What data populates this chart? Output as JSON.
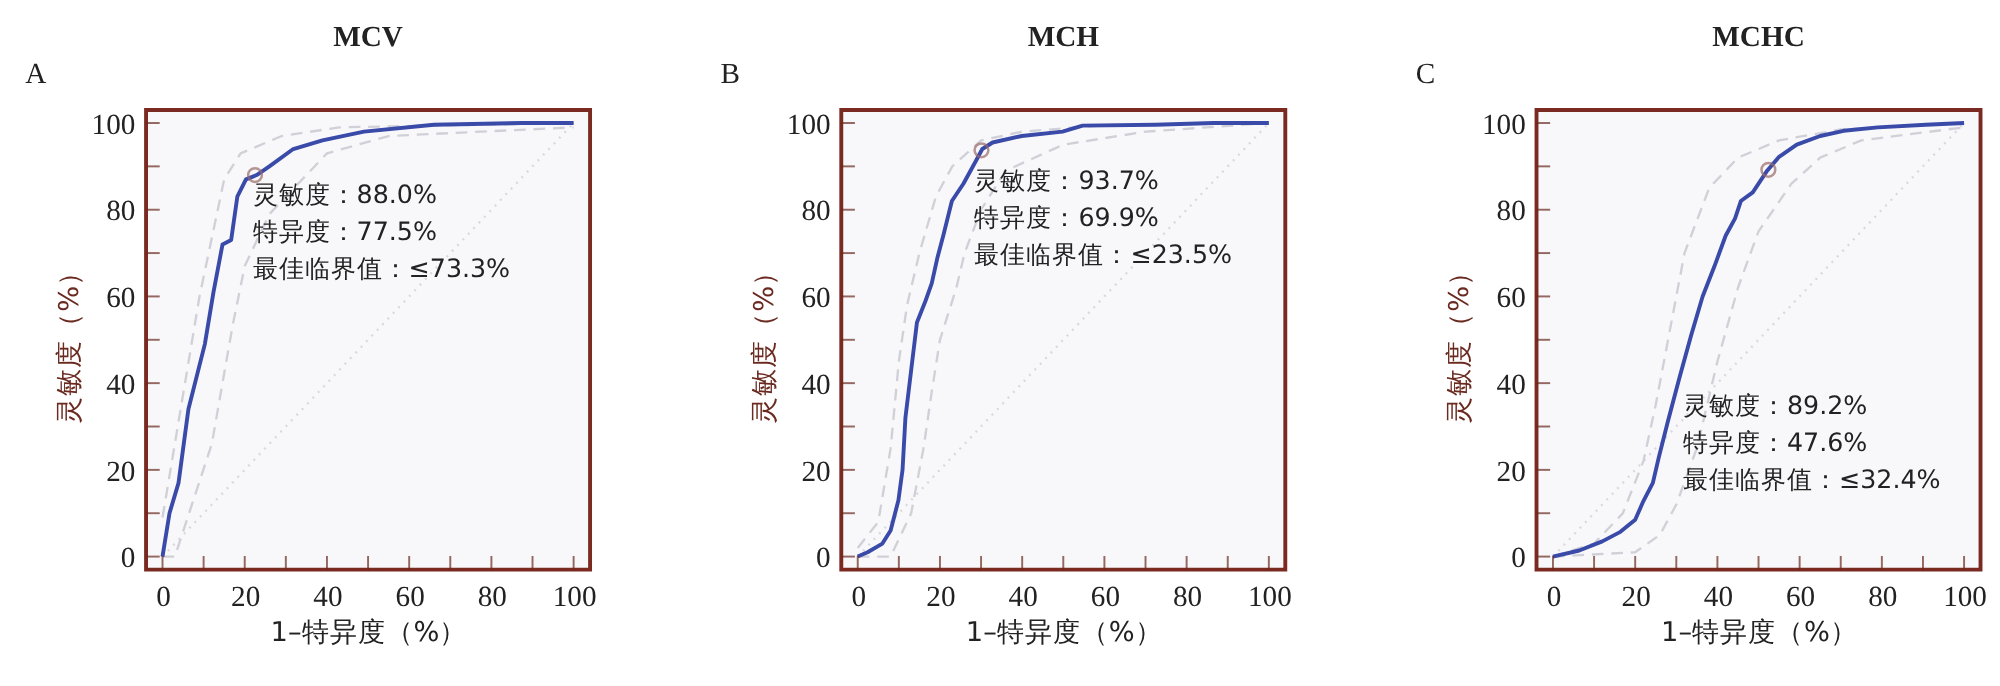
{
  "chart_data": [
    {
      "type": "line",
      "title": "MCV",
      "xlabel": "1–特异度（%）",
      "ylabel": "灵敏度（%）",
      "annotations": [
        "A",
        "灵敏度：88.0%",
        "特异度：77.5%",
        "最佳临界值：≤73.3%"
      ],
      "xlim": [
        -4,
        104
      ],
      "ylim": [
        -3,
        103
      ],
      "xticks": [
        0,
        {
          "value": 10,
          "label": null
        },
        20,
        {
          "value": 30,
          "label": null
        },
        40,
        {
          "value": 50,
          "label": null
        },
        60,
        {
          "value": 70,
          "label": null
        },
        80,
        {
          "value": 90,
          "label": null
        },
        100
      ],
      "yticks": [
        0,
        {
          "value": 10,
          "label": null
        },
        20,
        {
          "value": 30,
          "label": null
        },
        40,
        {
          "value": 50,
          "label": null
        },
        60,
        {
          "value": 70,
          "label": null
        },
        80,
        {
          "value": 90,
          "label": null
        },
        100
      ],
      "grid": false,
      "series": [
        {
          "type": "line",
          "color": "#d8d8e0",
          "line_style": "dotted",
          "marker": "none",
          "x": [
            0,
            100
          ],
          "values": [
            0,
            100
          ]
        },
        {
          "type": "line",
          "color": "#d0d0d8",
          "line_style": "dashed",
          "marker": "none",
          "x": [
            0,
            3,
            9,
            15,
            19,
            29,
            43,
            100
          ],
          "values": [
            9,
            26,
            60,
            87,
            93,
            97,
            99,
            100
          ]
        },
        {
          "type": "line",
          "color": "#d0d0d8",
          "line_style": "dashed",
          "marker": "none",
          "x": [
            0,
            3,
            12,
            17,
            20,
            26,
            40,
            55,
            100
          ],
          "values": [
            0,
            0,
            26,
            53,
            67,
            79,
            93,
            97,
            99
          ]
        },
        {
          "type": "line",
          "color": "#3a4aa8",
          "line_style": "solid",
          "marker": "none",
          "x": [
            0,
            1.7,
            3.9,
            6.3,
            10.3,
            12.4,
            14.6,
            16.7,
            18.2,
            20.3,
            22.9,
            26,
            31.8,
            38.9,
            49,
            66,
            87.5,
            100
          ],
          "values": [
            0,
            10,
            17,
            34,
            49,
            61,
            72,
            73,
            83,
            87,
            88,
            90,
            94,
            96,
            98,
            99.6,
            100,
            100
          ]
        },
        {
          "type": "scatter",
          "color": "#9a6a6a",
          "marker": "circle",
          "x": [
            22.5
          ],
          "values": [
            88.0
          ]
        }
      ]
    },
    {
      "type": "line",
      "title": "MCH",
      "xlabel": "1–特异度（%）",
      "ylabel": "灵敏度（%）",
      "annotations": [
        "B",
        "灵敏度：93.7%",
        "特异度：69.9%",
        "最佳临界值：≤23.5%"
      ],
      "xlim": [
        -4,
        104
      ],
      "ylim": [
        -3,
        103
      ],
      "xticks": [
        0,
        {
          "value": 10,
          "label": null
        },
        20,
        {
          "value": 30,
          "label": null
        },
        40,
        {
          "value": 50,
          "label": null
        },
        60,
        {
          "value": 70,
          "label": null
        },
        80,
        {
          "value": 90,
          "label": null
        },
        100
      ],
      "yticks": [
        0,
        {
          "value": 10,
          "label": null
        },
        20,
        {
          "value": 30,
          "label": null
        },
        40,
        {
          "value": 50,
          "label": null
        },
        60,
        {
          "value": 70,
          "label": null
        },
        80,
        {
          "value": 90,
          "label": null
        },
        100
      ],
      "grid": false,
      "series": [
        {
          "type": "line",
          "color": "#d8d8e0",
          "line_style": "dotted",
          "marker": "none",
          "x": [
            0,
            100
          ],
          "values": [
            0,
            100
          ]
        },
        {
          "type": "line",
          "color": "#d0d0d8",
          "line_style": "dashed",
          "marker": "none",
          "x": [
            0,
            5,
            8,
            10,
            12,
            15,
            19,
            23,
            30,
            40,
            60,
            100
          ],
          "values": [
            2,
            8,
            25,
            45,
            58,
            70,
            83,
            90,
            96,
            98,
            99.5,
            100
          ]
        },
        {
          "type": "line",
          "color": "#d0d0d8",
          "line_style": "dashed",
          "marker": "none",
          "x": [
            0,
            8,
            13,
            16,
            18,
            20,
            24,
            26,
            30,
            36,
            50,
            70,
            100
          ],
          "values": [
            0,
            0,
            10,
            25,
            38,
            50,
            62,
            70,
            80,
            89,
            95,
            98,
            100
          ]
        },
        {
          "type": "line",
          "color": "#3a4aa8",
          "line_style": "solid",
          "marker": "none",
          "x": [
            0,
            2.4,
            6,
            8,
            9.9,
            10.9,
            11.6,
            13,
            14.4,
            16.5,
            18,
            19.4,
            20.8,
            22.9,
            25.7,
            28.6,
            30.3,
            32.8,
            39.9,
            49.8,
            54.7,
            72.4,
            86.6,
            100
          ],
          "values": [
            0,
            1,
            3,
            6,
            13,
            20,
            32,
            43,
            54,
            59,
            63,
            69,
            74,
            82,
            86,
            91,
            94,
            95.5,
            97,
            98,
            99.4,
            99.6,
            100,
            100
          ]
        },
        {
          "type": "scatter",
          "color": "#9a6a6a",
          "marker": "circle",
          "x": [
            30.1
          ],
          "values": [
            93.7
          ]
        }
      ]
    },
    {
      "type": "line",
      "title": "MCHC",
      "xlabel": "1–特异度（%）",
      "ylabel": "灵敏度（%）",
      "annotations": [
        "C",
        "灵敏度：89.2%",
        "特异度：47.6%",
        "最佳临界值：≤32.4%"
      ],
      "xlim": [
        -4,
        104
      ],
      "ylim": [
        -3,
        103
      ],
      "xticks": [
        0,
        {
          "value": 10,
          "label": null
        },
        20,
        {
          "value": 30,
          "label": null
        },
        40,
        {
          "value": 50,
          "label": null
        },
        60,
        {
          "value": 70,
          "label": null
        },
        80,
        {
          "value": 90,
          "label": null
        },
        100
      ],
      "yticks": [
        0,
        {
          "value": 10,
          "label": null
        },
        20,
        {
          "value": 30,
          "label": null
        },
        40,
        {
          "value": 50,
          "label": null
        },
        60,
        {
          "value": 70,
          "label": null
        },
        80,
        {
          "value": 90,
          "label": null
        },
        100
      ],
      "grid": false,
      "series": [
        {
          "type": "line",
          "color": "#d8d8e0",
          "line_style": "dotted",
          "marker": "none",
          "x": [
            0,
            100
          ],
          "values": [
            0,
            100
          ]
        },
        {
          "type": "line",
          "color": "#d0d0d8",
          "line_style": "dashed",
          "marker": "none",
          "x": [
            0,
            10,
            17,
            22,
            25,
            28,
            32,
            38,
            45,
            55,
            70,
            100
          ],
          "values": [
            0,
            3,
            10,
            22,
            35,
            50,
            70,
            85,
            92,
            96,
            98.5,
            100
          ]
        },
        {
          "type": "line",
          "color": "#d0d0d8",
          "line_style": "dashed",
          "marker": "none",
          "x": [
            0,
            20,
            26,
            30,
            35,
            40,
            45,
            50,
            58,
            65,
            75,
            100
          ],
          "values": [
            0,
            1,
            5,
            12,
            25,
            45,
            62,
            75,
            86,
            92,
            96,
            99
          ]
        },
        {
          "type": "line",
          "color": "#3a4aa8",
          "line_style": "solid",
          "marker": "none",
          "x": [
            0,
            6.4,
            12,
            16.4,
            20,
            22,
            24.3,
            25.7,
            27.9,
            30.7,
            33.6,
            36.4,
            39.3,
            42,
            44.3,
            45.7,
            48.6,
            52.1,
            55,
            59.3,
            65,
            70.7,
            79,
            90.7,
            100
          ],
          "values": [
            0,
            1.4,
            3.5,
            5.7,
            8.5,
            12.8,
            17,
            22.7,
            31,
            41,
            51,
            60,
            67,
            74,
            78,
            82,
            84,
            89,
            92.2,
            95,
            97,
            98.2,
            99,
            99.6,
            100
          ]
        },
        {
          "type": "scatter",
          "color": "#9a6a6a",
          "marker": "circle",
          "x": [
            52.4
          ],
          "values": [
            89.2
          ]
        }
      ]
    }
  ]
}
